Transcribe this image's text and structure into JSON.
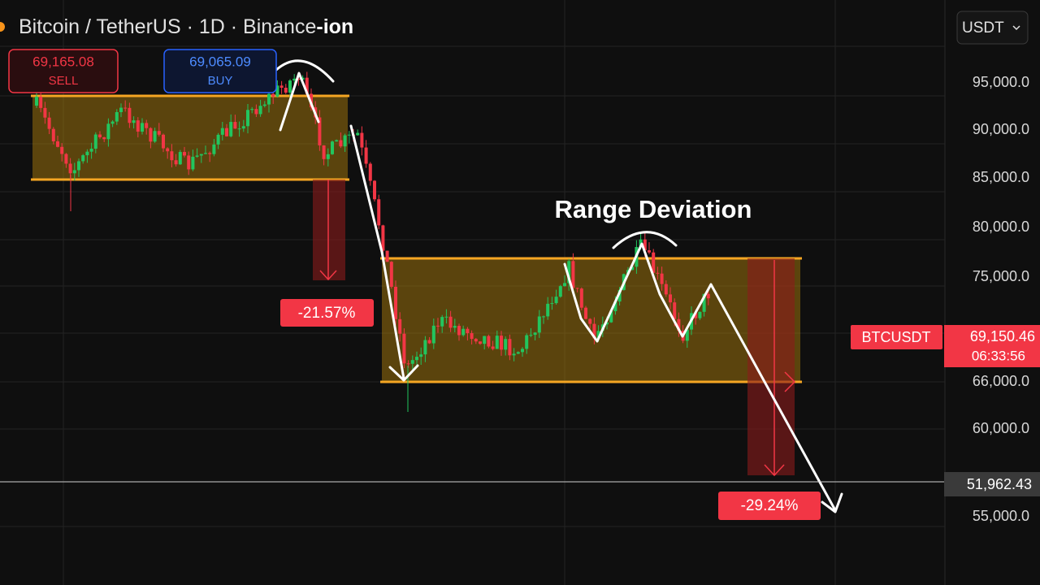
{
  "header": {
    "title": "Bitcoin / TetherUS · 1D · Binance",
    "title_suffix": "-ion"
  },
  "order_buttons": {
    "sell": {
      "price": "69,165.08",
      "label": "SELL"
    },
    "buy": {
      "price": "69,065.09",
      "label": "BUY"
    }
  },
  "currency_button": "USDT",
  "price_axis": [
    "95,000.0",
    "90,000.0",
    "85,000.0",
    "80,000.0",
    "75,000.0",
    "66,000.0",
    "60,000.0",
    "55,000.0"
  ],
  "annotations": {
    "title": "Range Deviation",
    "first_drop": "-21.57%",
    "projected_drop": "-29.24%"
  },
  "last_price": {
    "symbol": "BTCUSDT",
    "price": "69,150.46",
    "countdown": "06:33:56"
  },
  "crosshair_price": "51,962.43"
}
